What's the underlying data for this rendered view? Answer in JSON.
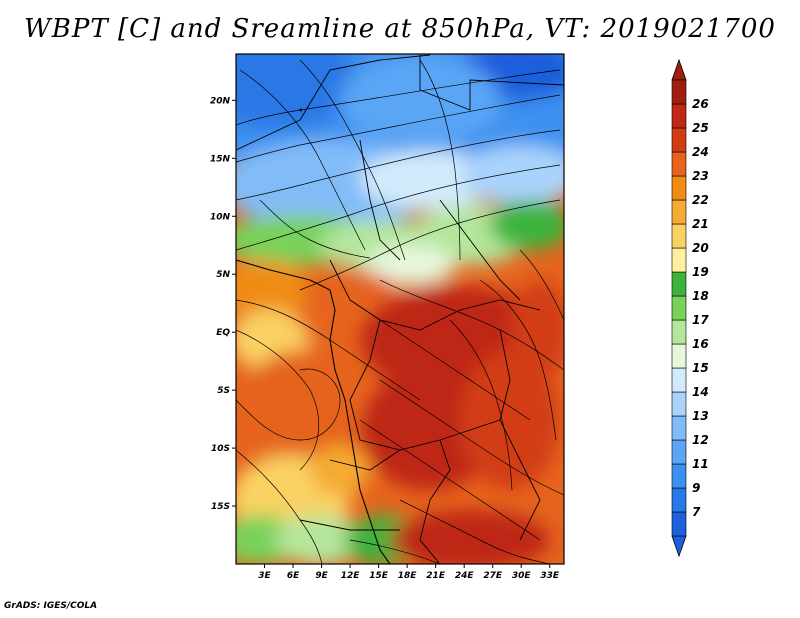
{
  "title": "WBPT [C] and Sreamline at 850hPa, VT: 2019021700",
  "credit": "GrADS: IGES/COLA",
  "map": {
    "lat_labels": [
      "20N",
      "15N",
      "10N",
      "5N",
      "EQ",
      "5S",
      "10S",
      "15S"
    ],
    "lon_labels": [
      "3E",
      "6E",
      "9E",
      "12E",
      "15E",
      "18E",
      "21E",
      "24E",
      "27E",
      "30E",
      "33E"
    ],
    "lon_range": [
      0,
      34.5
    ],
    "lat_range": [
      -20,
      24
    ],
    "field": "WBPT",
    "units": "C",
    "level": "850hPa"
  },
  "colorbar": {
    "labels": [
      "7",
      "9",
      "11",
      "12",
      "13",
      "14",
      "15",
      "16",
      "17",
      "18",
      "19",
      "20",
      "21",
      "22",
      "23",
      "24",
      "25",
      "26"
    ],
    "colors": [
      "#1e5fdc",
      "#2a78e6",
      "#3c91f0",
      "#5aa5f5",
      "#82bcf8",
      "#aad3fb",
      "#d2ebfc",
      "#e6f7dc",
      "#b4e69b",
      "#78d25a",
      "#3cb43c",
      "#fff0a0",
      "#fad264",
      "#f5aa32",
      "#f08c14",
      "#e6641e",
      "#d23c14",
      "#be2814",
      "#a01e0f"
    ]
  }
}
